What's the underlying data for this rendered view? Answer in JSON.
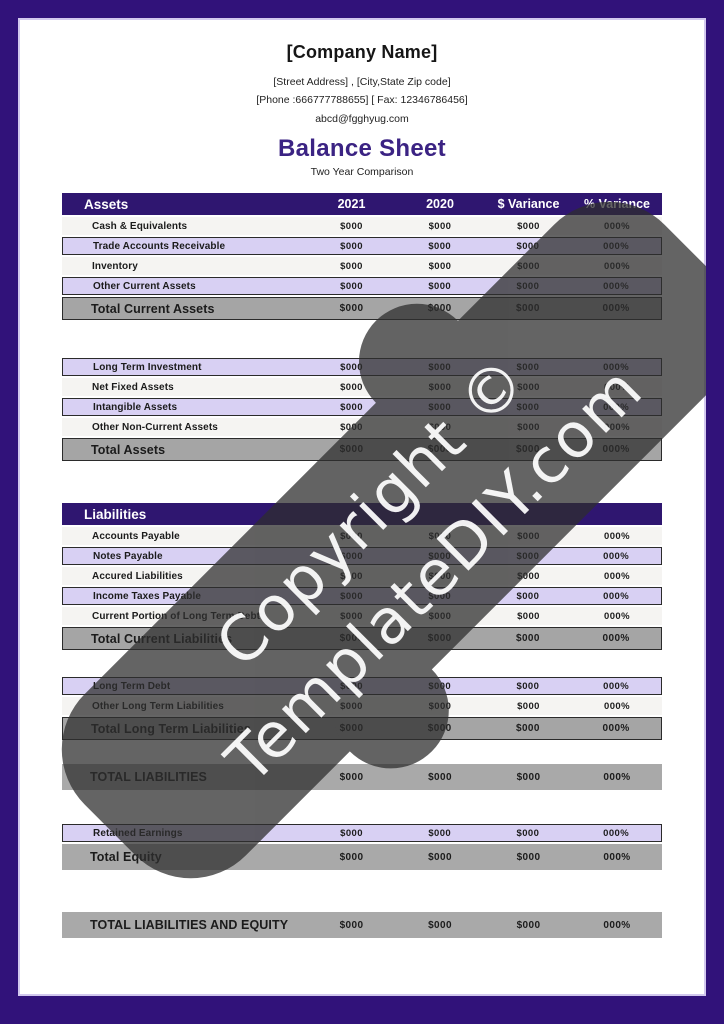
{
  "doc": {
    "company_name": "[Company Name]",
    "address_line": "[Street Address] , [City,State Zip code]",
    "phone_fax_line": "[Phone :666777788655]  [ Fax: 12346786456]",
    "email": "abcd@fgghyug.com",
    "title": "Balance Sheet",
    "subtitle": "Two Year Comparison"
  },
  "colors": {
    "page_border": "#31127a",
    "header_band": "#2f1670",
    "title_text": "#3b2383",
    "row_purple": "#d8d0f3",
    "row_white": "#f5f4f2",
    "row_gray": "#a9a9a9",
    "watermark_fill": "#2e2e2e",
    "watermark_text": "#ffffff"
  },
  "table": {
    "columns": [
      "2021",
      "2020",
      "$ Variance",
      "% Variance"
    ],
    "sections": [
      {
        "name": "assets-current",
        "header": {
          "label": "Assets",
          "show_columns": true
        },
        "rows": [
          {
            "label": "Cash & Equivalents",
            "style": "white",
            "values": [
              "$000",
              "$000",
              "$000",
              "000%"
            ]
          },
          {
            "label": "Trade Accounts Receivable",
            "style": "purple",
            "values": [
              "$000",
              "$000",
              "$000",
              "000%"
            ]
          },
          {
            "label": "Inventory",
            "style": "white",
            "values": [
              "$000",
              "$000",
              "$000",
              "000%"
            ]
          },
          {
            "label": "Other Current Assets",
            "style": "purple",
            "values": [
              "$000",
              "$000",
              "$000",
              "000%"
            ]
          },
          {
            "label": "Total Current Assets",
            "style": "total",
            "values": [
              "$000",
              "$000",
              "$000",
              "000%"
            ]
          }
        ]
      },
      {
        "name": "assets-noncurrent",
        "rows": [
          {
            "label": "Long Term Investment",
            "style": "purple",
            "values": [
              "$000",
              "$000",
              "$000",
              "000%"
            ]
          },
          {
            "label": "Net Fixed Assets",
            "style": "white",
            "values": [
              "$000",
              "$000",
              "$000",
              "000%"
            ]
          },
          {
            "label": "Intangible Assets",
            "style": "purple",
            "values": [
              "$000",
              "$000",
              "$000",
              "000%"
            ]
          },
          {
            "label": "Other Non-Current Assets",
            "style": "white",
            "values": [
              "$000",
              "$000",
              "$000",
              "000%"
            ]
          },
          {
            "label": "Total Assets",
            "style": "total",
            "values": [
              "$000",
              "$000",
              "$000",
              "000%"
            ]
          }
        ]
      },
      {
        "name": "liabilities-current",
        "header": {
          "label": "Liabilities",
          "show_columns": false
        },
        "rows": [
          {
            "label": "Accounts Payable",
            "style": "white",
            "values": [
              "$000",
              "$000",
              "$000",
              "000%"
            ]
          },
          {
            "label": "Notes Payable",
            "style": "purple",
            "values": [
              "$000",
              "$000",
              "$000",
              "000%"
            ]
          },
          {
            "label": "Accured Liabilities",
            "style": "white",
            "values": [
              "$000",
              "$000",
              "$000",
              "000%"
            ]
          },
          {
            "label": "Income Taxes Payable",
            "style": "purple",
            "values": [
              "$000",
              "$000",
              "$000",
              "000%"
            ]
          },
          {
            "label": "Current Portion of Long Term Debt",
            "style": "white",
            "values": [
              "$000",
              "$000",
              "$000",
              "000%"
            ]
          },
          {
            "label": "Total Current Liabilities",
            "style": "total",
            "values": [
              "$000",
              "$000",
              "$000",
              "000%"
            ]
          }
        ]
      },
      {
        "name": "liabilities-longterm",
        "rows": [
          {
            "label": "Long Term Debt",
            "style": "purple",
            "values": [
              "$000",
              "$000",
              "$000",
              "000%"
            ]
          },
          {
            "label": "Other Long Term Liabilities",
            "style": "white",
            "values": [
              "$000",
              "$000",
              "$000",
              "000%"
            ]
          },
          {
            "label": "Total Long Term Liabilities",
            "style": "total",
            "values": [
              "$000",
              "$000",
              "$000",
              "000%"
            ]
          }
        ]
      },
      {
        "name": "total-liabilities",
        "rows": [
          {
            "label": "TOTAL LIABILITIES",
            "style": "grand",
            "values": [
              "$000",
              "$000",
              "$000",
              "000%"
            ]
          }
        ]
      },
      {
        "name": "equity",
        "rows": [
          {
            "label": "Retained Earnings",
            "style": "purple",
            "values": [
              "$000",
              "$000",
              "$000",
              "000%"
            ]
          },
          {
            "label": "Total Equity",
            "style": "grand",
            "values": [
              "$000",
              "$000",
              "$000",
              "000%"
            ]
          }
        ]
      },
      {
        "name": "total-liabilities-equity",
        "rows": [
          {
            "label": "TOTAL LIABILITIES AND EQUITY",
            "style": "grand",
            "values": [
              "$000",
              "$000",
              "$000",
              "000%"
            ]
          }
        ]
      }
    ]
  },
  "watermark": {
    "line1": "Copyright ©",
    "line2": "TemplateDIY.com"
  }
}
